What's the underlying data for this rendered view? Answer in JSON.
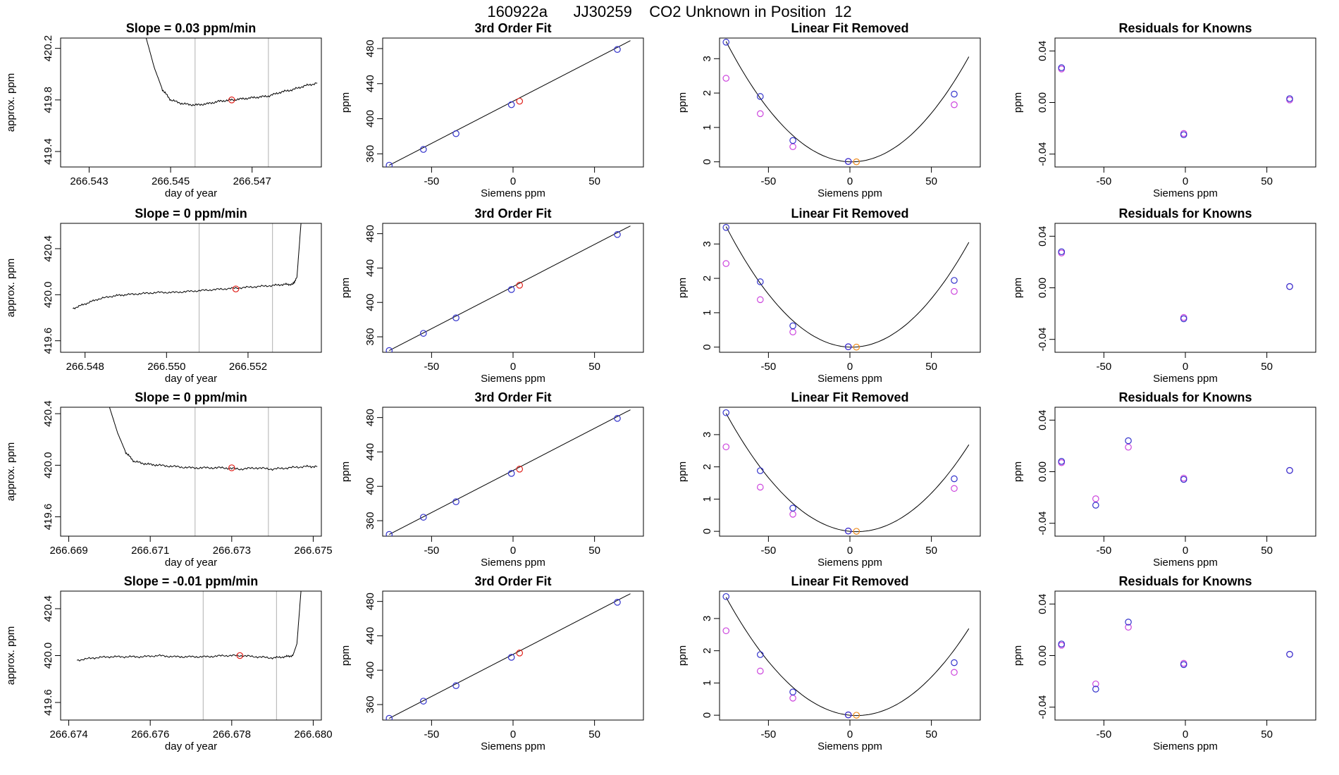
{
  "page": {
    "title": "160922a      JJ30259    CO2 Unknown in Position  12"
  },
  "colors": {
    "trace": "#000000",
    "vline": "#bdbdbd",
    "known": "#3333cc",
    "unknown": "#e0201a",
    "unknown_lin": "#ee8c1f",
    "residual_alt": "#cc33cc",
    "magenta": "#cc44dd"
  },
  "chart_data": [
    {
      "type": "line",
      "title": "Slope =  0.03  ppm/min",
      "xlabel": "day of year",
      "ylabel": "approx. ppm",
      "xticks": [
        "266.543",
        "266.545",
        "266.547"
      ],
      "yticks": [
        "419.4",
        "419.8",
        "420.2"
      ],
      "xlim": [
        266.5423,
        266.5487
      ],
      "ylim": [
        419.28,
        420.28
      ],
      "vlines": [
        266.5456,
        266.5474
      ],
      "marker": {
        "x": 266.5465,
        "y": 419.8
      },
      "trace": [
        [
          266.5444,
          420.28
        ],
        [
          266.5446,
          420.05
        ],
        [
          266.5448,
          419.88
        ],
        [
          266.545,
          419.8
        ],
        [
          266.5453,
          419.77
        ],
        [
          266.5456,
          419.76
        ],
        [
          266.5459,
          419.77
        ],
        [
          266.5462,
          419.79
        ],
        [
          266.5465,
          419.8
        ],
        [
          266.5468,
          419.81
        ],
        [
          266.5471,
          419.82
        ],
        [
          266.5474,
          419.83
        ],
        [
          266.5477,
          419.86
        ],
        [
          266.548,
          419.88
        ],
        [
          266.5483,
          419.91
        ],
        [
          266.5486,
          419.93
        ]
      ]
    },
    {
      "type": "scatter",
      "title": "3rd Order Fit",
      "xlabel": "Siemens ppm",
      "ylabel": "ppm",
      "xticks": [
        "-50",
        "0",
        "50"
      ],
      "yticks": [
        "360",
        "400",
        "440",
        "480"
      ],
      "xlim": [
        -80,
        80
      ],
      "ylim": [
        345,
        492
      ],
      "fit_line": [
        [
          -76,
          347
        ],
        [
          72,
          489
        ]
      ],
      "knowns": [
        [
          -76,
          347
        ],
        [
          -55,
          365
        ],
        [
          -35,
          383
        ],
        [
          -1,
          416
        ],
        [
          64,
          479
        ]
      ],
      "unknown": [
        [
          4,
          420
        ]
      ]
    },
    {
      "type": "scatter",
      "title": "Linear Fit Removed",
      "xlabel": "Siemens ppm",
      "ylabel": "ppm",
      "xticks": [
        "-50",
        "0",
        "50"
      ],
      "yticks": [
        "0",
        "1",
        "2",
        "3"
      ],
      "xlim": [
        -80,
        80
      ],
      "ylim": [
        -0.15,
        3.6
      ],
      "curve": {
        "a": 0.00059,
        "b": -0.0012,
        "c": 0,
        "xmin": -76,
        "xmax": 73
      },
      "knowns": [
        [
          -76,
          3.48
        ],
        [
          -55,
          1.9
        ],
        [
          -35,
          0.62
        ],
        [
          -1,
          0.01
        ],
        [
          64,
          1.97
        ]
      ],
      "knowns_alt": [
        [
          -76,
          2.43
        ],
        [
          -55,
          1.4
        ],
        [
          -35,
          0.44
        ],
        [
          -1,
          0.01
        ],
        [
          64,
          1.66
        ]
      ],
      "unknown": [
        [
          4,
          0.0
        ]
      ]
    },
    {
      "type": "scatter",
      "title": "Residuals for Knowns",
      "xlabel": "Siemens ppm",
      "ylabel": "ppm",
      "xticks": [
        "-50",
        "0",
        "50"
      ],
      "yticks": [
        "-0.04",
        "0.00",
        "0.04"
      ],
      "xlim": [
        -80,
        80
      ],
      "ylim": [
        -0.05,
        0.05
      ],
      "knowns": [
        [
          -76,
          0.027
        ],
        [
          -1,
          -0.025
        ],
        [
          64,
          0.003
        ]
      ],
      "knowns_alt": [
        [
          -76,
          0.026
        ],
        [
          -1,
          -0.024
        ],
        [
          64,
          0.002
        ]
      ]
    },
    {
      "type": "line",
      "title": "Slope =  0  ppm/min",
      "xlabel": "day of year",
      "ylabel": "approx. ppm",
      "xticks": [
        "266.548",
        "266.550",
        "266.552"
      ],
      "yticks": [
        "419.6",
        "420.0",
        "420.4"
      ],
      "xlim": [
        266.5474,
        266.5538
      ],
      "ylim": [
        419.5,
        420.62
      ],
      "vlines": [
        266.5508,
        266.5526
      ],
      "marker": {
        "x": 266.5517,
        "y": 420.05
      },
      "trace": [
        [
          266.5477,
          419.88
        ],
        [
          266.548,
          419.92
        ],
        [
          266.5483,
          419.96
        ],
        [
          266.5487,
          419.99
        ],
        [
          266.549,
          420.0
        ],
        [
          266.5494,
          420.01
        ],
        [
          266.5498,
          420.02
        ],
        [
          266.5502,
          420.02
        ],
        [
          266.5506,
          420.03
        ],
        [
          266.551,
          420.04
        ],
        [
          266.5514,
          420.05
        ],
        [
          266.5518,
          420.06
        ],
        [
          266.5522,
          420.07
        ],
        [
          266.5526,
          420.08
        ],
        [
          266.5529,
          420.09
        ],
        [
          266.5531,
          420.09
        ],
        [
          266.5532,
          420.15
        ],
        [
          266.5533,
          420.62
        ]
      ]
    },
    {
      "type": "scatter",
      "title": "3rd Order Fit",
      "xlabel": "Siemens ppm",
      "ylabel": "ppm",
      "xticks": [
        "-50",
        "0",
        "50"
      ],
      "yticks": [
        "360",
        "400",
        "440",
        "480"
      ],
      "xlim": [
        -80,
        80
      ],
      "ylim": [
        342,
        492
      ],
      "fit_line": [
        [
          -76,
          344
        ],
        [
          72,
          489
        ]
      ],
      "knowns": [
        [
          -76,
          344
        ],
        [
          -55,
          364
        ],
        [
          -35,
          382
        ],
        [
          -1,
          415
        ],
        [
          64,
          479
        ]
      ],
      "unknown": [
        [
          4,
          420
        ]
      ]
    },
    {
      "type": "scatter",
      "title": "Linear Fit Removed",
      "xlabel": "Siemens ppm",
      "ylabel": "ppm",
      "xticks": [
        "-50",
        "0",
        "50"
      ],
      "yticks": [
        "0",
        "1",
        "2",
        "3"
      ],
      "xlim": [
        -80,
        80
      ],
      "ylim": [
        -0.15,
        3.6
      ],
      "curve": {
        "a": 0.00059,
        "b": -0.0013,
        "c": 0,
        "xmin": -76,
        "xmax": 73
      },
      "knowns": [
        [
          -76,
          3.48
        ],
        [
          -55,
          1.9
        ],
        [
          -35,
          0.62
        ],
        [
          -1,
          0.01
        ],
        [
          64,
          1.94
        ]
      ],
      "knowns_alt": [
        [
          -76,
          2.43
        ],
        [
          -55,
          1.38
        ],
        [
          -35,
          0.44
        ],
        [
          -1,
          0.01
        ],
        [
          64,
          1.62
        ]
      ],
      "unknown": [
        [
          4,
          0.0
        ]
      ]
    },
    {
      "type": "scatter",
      "title": "Residuals for Knowns",
      "xlabel": "Siemens ppm",
      "ylabel": "ppm",
      "xticks": [
        "-50",
        "0",
        "50"
      ],
      "yticks": [
        "-0.04",
        "0.00",
        "0.04"
      ],
      "xlim": [
        -80,
        80
      ],
      "ylim": [
        -0.05,
        0.05
      ],
      "knowns": [
        [
          -76,
          0.028
        ],
        [
          -1,
          -0.024
        ],
        [
          64,
          0.001
        ]
      ],
      "knowns_alt": [
        [
          -76,
          0.027
        ],
        [
          -1,
          -0.023
        ],
        [
          64,
          0.001
        ]
      ]
    },
    {
      "type": "line",
      "title": "Slope =  0  ppm/min",
      "xlabel": "day of year",
      "ylabel": "approx. ppm",
      "xticks": [
        "266.669",
        "266.671",
        "266.673",
        "266.675"
      ],
      "yticks": [
        "419.6",
        "420.0",
        "420.4"
      ],
      "xlim": [
        266.6688,
        266.6752
      ],
      "ylim": [
        419.45,
        420.45
      ],
      "vlines": [
        266.6721,
        266.6739
      ],
      "marker": {
        "x": 266.673,
        "y": 419.98
      },
      "trace": [
        [
          266.67,
          420.45
        ],
        [
          266.6702,
          420.25
        ],
        [
          266.6704,
          420.1
        ],
        [
          266.6706,
          420.03
        ],
        [
          266.6709,
          420.01
        ],
        [
          266.6712,
          420.0
        ],
        [
          266.6716,
          419.99
        ],
        [
          266.672,
          419.98
        ],
        [
          266.6724,
          419.98
        ],
        [
          266.6728,
          419.98
        ],
        [
          266.6732,
          419.97
        ],
        [
          266.6736,
          419.98
        ],
        [
          266.674,
          419.97
        ],
        [
          266.6744,
          419.98
        ],
        [
          266.6748,
          419.99
        ],
        [
          266.6751,
          419.99
        ]
      ]
    },
    {
      "type": "scatter",
      "title": "3rd Order Fit",
      "xlabel": "Siemens ppm",
      "ylabel": "ppm",
      "xticks": [
        "-50",
        "0",
        "50"
      ],
      "yticks": [
        "360",
        "400",
        "440",
        "480"
      ],
      "xlim": [
        -80,
        80
      ],
      "ylim": [
        342,
        492
      ],
      "fit_line": [
        [
          -76,
          344
        ],
        [
          72,
          489
        ]
      ],
      "knowns": [
        [
          -76,
          344
        ],
        [
          -55,
          364
        ],
        [
          -35,
          382
        ],
        [
          -1,
          415
        ],
        [
          64,
          479
        ]
      ],
      "unknown": [
        [
          4,
          420
        ]
      ]
    },
    {
      "type": "scatter",
      "title": "Linear Fit Removed",
      "xlabel": "Siemens ppm",
      "ylabel": "ppm",
      "xticks": [
        "-50",
        "0",
        "50"
      ],
      "yticks": [
        "0",
        "1",
        "2",
        "3"
      ],
      "xlim": [
        -80,
        80
      ],
      "ylim": [
        -0.15,
        3.85
      ],
      "curve": {
        "a": 0.00057,
        "b": -0.0048,
        "c": 0,
        "xmin": -76,
        "xmax": 73
      },
      "knowns": [
        [
          -76,
          3.68
        ],
        [
          -55,
          1.88
        ],
        [
          -35,
          0.72
        ],
        [
          -1,
          0.01
        ],
        [
          64,
          1.63
        ]
      ],
      "knowns_alt": [
        [
          -76,
          2.62
        ],
        [
          -55,
          1.37
        ],
        [
          -35,
          0.53
        ],
        [
          -1,
          0.01
        ],
        [
          64,
          1.33
        ]
      ],
      "unknown": [
        [
          4,
          0.0
        ]
      ]
    },
    {
      "type": "scatter",
      "title": "Residuals for Knowns",
      "xlabel": "Siemens ppm",
      "ylabel": "ppm",
      "xticks": [
        "-50",
        "0",
        "50"
      ],
      "yticks": [
        "-0.04",
        "0.00",
        "0.04"
      ],
      "xlim": [
        -80,
        80
      ],
      "ylim": [
        -0.05,
        0.05
      ],
      "knowns": [
        [
          -76,
          0.008
        ],
        [
          -55,
          -0.026
        ],
        [
          -35,
          0.024
        ],
        [
          -1,
          -0.006
        ],
        [
          64,
          0.001
        ]
      ],
      "knowns_alt": [
        [
          -76,
          0.007
        ],
        [
          -55,
          -0.021
        ],
        [
          -35,
          0.019
        ],
        [
          -1,
          -0.005
        ],
        [
          64,
          0.001
        ]
      ]
    },
    {
      "type": "line",
      "title": "Slope =  -0.01  ppm/min",
      "xlabel": "day of year",
      "ylabel": "approx. ppm",
      "xticks": [
        "266.674",
        "266.676",
        "266.678",
        "266.680"
      ],
      "yticks": [
        "419.6",
        "420.0",
        "420.4"
      ],
      "xlim": [
        266.6738,
        266.6802
      ],
      "ylim": [
        419.45,
        420.55
      ],
      "vlines": [
        266.6773,
        266.6791
      ],
      "marker": {
        "x": 266.6782,
        "y": 420.0
      },
      "trace": [
        [
          266.6742,
          419.96
        ],
        [
          266.6746,
          419.98
        ],
        [
          266.675,
          419.99
        ],
        [
          266.6754,
          419.99
        ],
        [
          266.6758,
          419.99
        ],
        [
          266.6762,
          420.0
        ],
        [
          266.6766,
          419.99
        ],
        [
          266.677,
          419.99
        ],
        [
          266.6774,
          419.99
        ],
        [
          266.6778,
          420.0
        ],
        [
          266.6782,
          420.0
        ],
        [
          266.6786,
          419.99
        ],
        [
          266.679,
          419.98
        ],
        [
          266.6793,
          419.99
        ],
        [
          266.6795,
          420.0
        ],
        [
          266.6796,
          420.1
        ],
        [
          266.6797,
          420.55
        ]
      ]
    },
    {
      "type": "scatter",
      "title": "3rd Order Fit",
      "xlabel": "Siemens ppm",
      "ylabel": "ppm",
      "xticks": [
        "-50",
        "0",
        "50"
      ],
      "yticks": [
        "360",
        "400",
        "440",
        "480"
      ],
      "xlim": [
        -80,
        80
      ],
      "ylim": [
        342,
        492
      ],
      "fit_line": [
        [
          -76,
          344
        ],
        [
          72,
          489
        ]
      ],
      "knowns": [
        [
          -76,
          344
        ],
        [
          -55,
          364
        ],
        [
          -35,
          382
        ],
        [
          -1,
          415
        ],
        [
          64,
          479
        ]
      ],
      "unknown": [
        [
          4,
          420
        ]
      ]
    },
    {
      "type": "scatter",
      "title": "Linear Fit Removed",
      "xlabel": "Siemens ppm",
      "ylabel": "ppm",
      "xticks": [
        "-50",
        "0",
        "50"
      ],
      "yticks": [
        "0",
        "1",
        "2",
        "3"
      ],
      "xlim": [
        -80,
        80
      ],
      "ylim": [
        -0.15,
        3.85
      ],
      "curve": {
        "a": 0.00057,
        "b": -0.0048,
        "c": 0,
        "xmin": -76,
        "xmax": 73
      },
      "knowns": [
        [
          -76,
          3.68
        ],
        [
          -55,
          1.88
        ],
        [
          -35,
          0.72
        ],
        [
          -1,
          0.01
        ],
        [
          64,
          1.63
        ]
      ],
      "knowns_alt": [
        [
          -76,
          2.62
        ],
        [
          -55,
          1.37
        ],
        [
          -35,
          0.53
        ],
        [
          -1,
          0.01
        ],
        [
          64,
          1.33
        ]
      ],
      "unknown": [
        [
          4,
          0.0
        ]
      ]
    },
    {
      "type": "scatter",
      "title": "Residuals for Knowns",
      "xlabel": "Siemens ppm",
      "ylabel": "ppm",
      "xticks": [
        "-50",
        "0",
        "50"
      ],
      "yticks": [
        "-0.04",
        "0.00",
        "0.04"
      ],
      "xlim": [
        -80,
        80
      ],
      "ylim": [
        -0.05,
        0.05
      ],
      "knowns": [
        [
          -76,
          0.009
        ],
        [
          -55,
          -0.026
        ],
        [
          -35,
          0.026
        ],
        [
          -1,
          -0.007
        ],
        [
          64,
          0.001
        ]
      ],
      "knowns_alt": [
        [
          -76,
          0.008
        ],
        [
          -55,
          -0.022
        ],
        [
          -35,
          0.022
        ],
        [
          -1,
          -0.006
        ],
        [
          64,
          0.001
        ]
      ]
    }
  ]
}
